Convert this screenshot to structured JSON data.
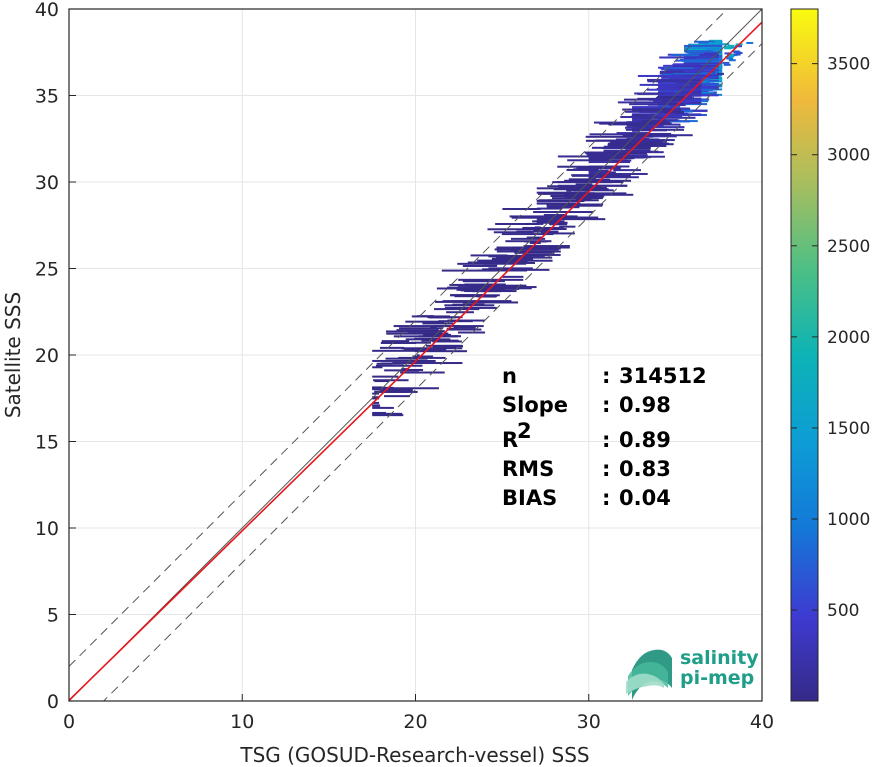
{
  "chart_data": {
    "type": "heatmap",
    "title": "",
    "xlabel": "TSG (GOSUD-Research-vessel) SSS",
    "ylabel": "Satellite SSS",
    "xlim": [
      0,
      40
    ],
    "ylim": [
      0,
      40
    ],
    "xticks": [
      "0",
      "10",
      "20",
      "30",
      "40"
    ],
    "yticks": [
      "0",
      "5",
      "10",
      "15",
      "20",
      "25",
      "30",
      "35",
      "40"
    ],
    "grid": true,
    "colorbar": {
      "ticks": [
        "500",
        "1000",
        "1500",
        "2000",
        "2500",
        "3000",
        "3500"
      ],
      "tick_values": [
        500,
        1000,
        1500,
        2000,
        2500,
        3000,
        3500
      ],
      "range": [
        1,
        3800
      ],
      "colormap": "parula"
    },
    "lines": [
      {
        "kind": "identity",
        "style": "solid",
        "color": "#555555",
        "slope": 1.0,
        "intercept": 0.0
      },
      {
        "kind": "upper-bound",
        "style": "dashed",
        "color": "#555555",
        "slope": 1.0,
        "intercept": 2.0
      },
      {
        "kind": "lower-bound",
        "style": "dashed",
        "color": "#555555",
        "slope": 1.0,
        "intercept": -2.0
      },
      {
        "kind": "regression",
        "style": "solid",
        "color": "#e8161c",
        "slope": 0.98,
        "intercept": 0.04
      }
    ],
    "density_clusters": [
      {
        "x": [
          35.5,
          37.7
        ],
        "y": [
          35.0,
          38.2
        ],
        "level": 1500
      },
      {
        "x": [
          34.0,
          37.5
        ],
        "y": [
          33.5,
          37.5
        ],
        "level": 700
      },
      {
        "x": [
          32.5,
          36.5
        ],
        "y": [
          32.0,
          36.5
        ],
        "level": 350
      },
      {
        "x": [
          30.0,
          35.5
        ],
        "y": [
          30.0,
          35.0
        ],
        "level": 150
      },
      {
        "x": [
          27.0,
          36.0
        ],
        "y": [
          27.5,
          33.0
        ],
        "level": 60
      },
      {
        "x": [
          22.0,
          33.0
        ],
        "y": [
          23.0,
          30.0
        ],
        "level": 30
      },
      {
        "x": [
          18.0,
          30.0
        ],
        "y": [
          19.5,
          26.0
        ],
        "level": 15
      },
      {
        "x": [
          17.5,
          24.0
        ],
        "y": [
          16.5,
          22.0
        ],
        "level": 8
      }
    ],
    "stats": [
      {
        "label": "n",
        "sep": ":",
        "value": "314512"
      },
      {
        "label": "Slope",
        "sep": ":",
        "value": "0.98"
      },
      {
        "label": "R",
        "sup": "2",
        "sep": ":",
        "value": "0.89"
      },
      {
        "label": "RMS",
        "sep": ":",
        "value": "0.83"
      },
      {
        "label": "BIAS",
        "sep": ":",
        "value": "0.04"
      }
    ]
  },
  "logo": {
    "line1": "salinity",
    "line2": "pi-mep",
    "color": "#1f9e89"
  }
}
